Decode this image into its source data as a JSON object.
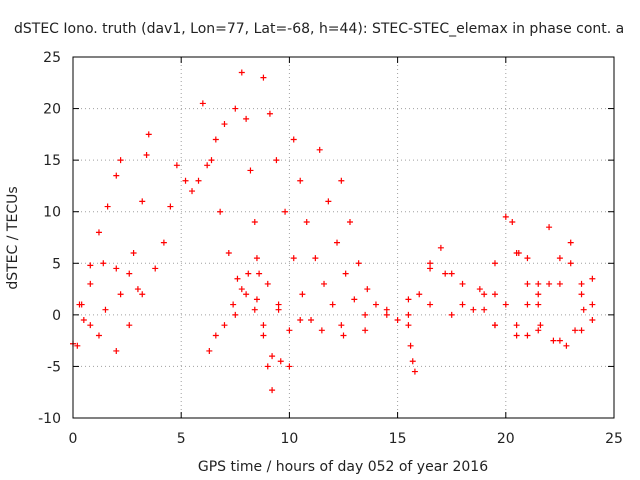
{
  "chart_data": {
    "type": "scatter",
    "title": "dSTEC Iono. truth (dav1, Lon=77, Lat=-68, h=44): STEC-STEC_elemax in phase cont. a",
    "xlabel": "GPS time / hours of day 052 of year 2016",
    "ylabel": "dSTEC  / TECUs",
    "xlim": [
      0,
      25
    ],
    "ylim": [
      -10,
      25
    ],
    "x_ticks": [
      "0",
      "5",
      "10",
      "15",
      "20",
      "25"
    ],
    "y_ticks": [
      "-10",
      "-5",
      "0",
      "5",
      "10",
      "15",
      "20",
      "25"
    ],
    "grid": true,
    "marker": "+",
    "color": "#ff0000",
    "series": [
      {
        "x": [
          0.0,
          0.4,
          0.8,
          1.2,
          1.6,
          2.0,
          2.2
        ],
        "y": [
          -2.8,
          1.0,
          4.8,
          8.0,
          10.5,
          13.5,
          15.0
        ]
      },
      {
        "x": [
          0.2,
          0.8,
          1.5,
          2.2,
          2.8,
          3.2,
          3.4,
          3.5
        ],
        "y": [
          -3.0,
          -1.0,
          0.5,
          2.0,
          6.0,
          11.0,
          15.5,
          17.5
        ]
      },
      {
        "x": [
          0.3,
          0.8,
          1.4,
          2.0,
          2.6,
          3.0
        ],
        "y": [
          1.0,
          3.0,
          5.0,
          4.5,
          4.0,
          2.5
        ]
      },
      {
        "x": [
          0.5,
          1.2,
          2.0,
          2.6,
          3.2,
          3.8,
          4.2,
          4.5,
          4.8,
          5.2,
          5.5,
          5.8,
          6.2,
          6.6,
          7.0,
          7.5
        ],
        "y": [
          -0.5,
          -2.0,
          -3.5,
          -1.0,
          2.0,
          4.5,
          7.0,
          10.5,
          14.5,
          13.0,
          12.0,
          13.0,
          14.5,
          17.0,
          18.5,
          20.0
        ]
      },
      {
        "x": [
          6.3,
          6.6,
          7.0,
          7.4,
          7.8,
          8.1,
          8.5,
          9.0,
          9.5,
          10.0
        ],
        "y": [
          -3.5,
          -2.0,
          -1.0,
          1.0,
          2.5,
          4.0,
          5.5,
          3.0,
          0.5,
          -1.5
        ]
      },
      {
        "x": [
          6.0,
          6.4,
          6.8,
          7.2,
          7.6,
          8.0,
          8.4,
          8.8,
          9.2,
          9.6,
          10.0
        ],
        "y": [
          20.5,
          15.0,
          10.0,
          6.0,
          3.5,
          2.0,
          0.5,
          -2.0,
          -4.0,
          -4.5,
          -5.0
        ]
      },
      {
        "x": [
          7.8,
          8.0,
          8.2,
          8.4,
          8.6,
          8.8,
          9.0,
          9.2
        ],
        "y": [
          23.5,
          19.0,
          14.0,
          9.0,
          4.0,
          -1.0,
          -5.0,
          -7.3
        ]
      },
      {
        "x": [
          8.8,
          9.1,
          9.4,
          9.8,
          10.2,
          10.6,
          11.0
        ],
        "y": [
          23.0,
          19.5,
          15.0,
          10.0,
          5.5,
          2.0,
          -0.5
        ]
      },
      {
        "x": [
          10.2,
          10.5,
          10.8,
          11.2,
          11.6,
          12.0,
          12.4
        ],
        "y": [
          17.0,
          13.0,
          9.0,
          5.5,
          3.0,
          1.0,
          -1.0
        ]
      },
      {
        "x": [
          11.4,
          11.8,
          12.2,
          12.6,
          13.0,
          13.5
        ],
        "y": [
          16.0,
          11.0,
          7.0,
          4.0,
          1.5,
          0.0
        ]
      },
      {
        "x": [
          12.4,
          12.8,
          13.2,
          13.6,
          14.0,
          14.5,
          15.0
        ],
        "y": [
          13.0,
          9.0,
          5.0,
          2.5,
          1.0,
          0.0,
          -0.5
        ]
      },
      {
        "x": [
          7.5,
          8.5,
          9.5,
          10.5,
          11.5,
          12.5,
          13.5,
          14.5,
          15.5,
          16.5,
          17.5,
          18.5,
          19.5,
          20.5,
          21.5,
          22.5,
          23.5,
          24.0
        ],
        "y": [
          0.0,
          1.5,
          1.0,
          -0.5,
          -1.5,
          -2.0,
          -1.5,
          0.5,
          1.5,
          1.0,
          0.0,
          0.5,
          -1.0,
          -2.0,
          -1.5,
          -2.5,
          -1.5,
          -0.5
        ]
      },
      {
        "x": [
          15.5,
          15.6,
          15.7,
          15.8
        ],
        "y": [
          -1.0,
          -3.0,
          -4.5,
          -5.5
        ]
      },
      {
        "x": [
          15.5,
          16.0,
          16.5,
          17.0,
          17.5,
          18.0
        ],
        "y": [
          0.0,
          2.0,
          4.5,
          6.5,
          4.0,
          1.0
        ]
      },
      {
        "x": [
          16.5,
          17.2,
          18.0,
          18.8,
          19.5
        ],
        "y": [
          5.0,
          4.0,
          3.0,
          2.5,
          2.0
        ]
      },
      {
        "x": [
          19.0,
          19.5,
          20.0,
          20.3,
          20.6,
          21.0,
          21.5
        ],
        "y": [
          2.0,
          5.0,
          9.5,
          9.0,
          6.0,
          3.0,
          1.0
        ]
      },
      {
        "x": [
          20.5,
          21.0,
          21.5,
          22.0,
          22.5,
          23.0,
          23.5,
          24.0
        ],
        "y": [
          -1.0,
          1.0,
          3.0,
          8.5,
          3.0,
          5.0,
          2.0,
          3.5
        ]
      },
      {
        "x": [
          21.0,
          21.6,
          22.2,
          22.8,
          23.2,
          23.6
        ],
        "y": [
          -2.0,
          -1.0,
          -2.5,
          -3.0,
          -1.5,
          0.5
        ]
      },
      {
        "x": [
          19.0,
          19.5,
          20.0,
          20.5,
          21.0,
          21.5,
          22.0,
          22.5,
          23.0,
          23.5,
          24.0
        ],
        "y": [
          0.5,
          -1.0,
          1.0,
          6.0,
          5.5,
          2.0,
          3.0,
          5.5,
          7.0,
          3.0,
          1.0
        ]
      }
    ]
  }
}
